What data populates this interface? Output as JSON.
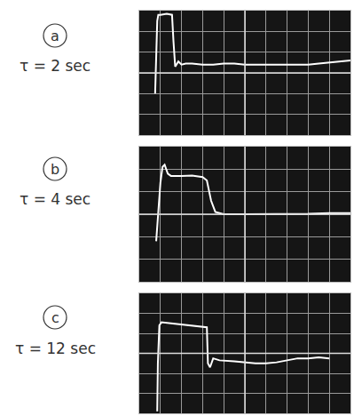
{
  "chart_data": [
    {
      "type": "line",
      "title": "a",
      "subtitle": "τ = 2 sec",
      "xlim": [
        0,
        10
      ],
      "ylim": [
        0,
        6
      ],
      "xticks": [
        0,
        1,
        2,
        3,
        4,
        5,
        6,
        7,
        8,
        9,
        10
      ],
      "yticks": [
        0,
        1,
        2,
        3,
        4,
        5,
        6
      ],
      "grid": true,
      "tick_labels": false,
      "color": "#ffffff",
      "x": [
        0.75,
        0.78,
        0.85,
        0.9,
        1.0,
        1.3,
        1.55,
        1.62,
        1.7,
        1.85,
        2.0,
        2.2,
        2.5,
        3,
        3.5,
        4,
        4.5,
        5,
        5.5,
        6,
        6.5,
        7,
        7.5,
        8,
        8.5,
        9,
        9.5,
        10
      ],
      "values": [
        2.0,
        3.5,
        5.5,
        5.8,
        5.8,
        5.85,
        5.8,
        4.5,
        3.3,
        3.55,
        3.4,
        3.45,
        3.45,
        3.4,
        3.4,
        3.45,
        3.45,
        3.4,
        3.4,
        3.4,
        3.38,
        3.38,
        3.4,
        3.4,
        3.45,
        3.5,
        3.55,
        3.6
      ]
    },
    {
      "type": "line",
      "title": "b",
      "subtitle": "τ = 4 sec",
      "xlim": [
        0,
        10
      ],
      "ylim": [
        0,
        6
      ],
      "xticks": [
        0,
        1,
        2,
        3,
        4,
        5,
        6,
        7,
        8,
        9,
        10
      ],
      "yticks": [
        0,
        1,
        2,
        3,
        4,
        5,
        6
      ],
      "grid": true,
      "tick_labels": false,
      "color": "#ffffff",
      "x": [
        0.8,
        0.9,
        1.0,
        1.1,
        1.2,
        1.35,
        1.5,
        2.0,
        2.5,
        3.0,
        3.2,
        3.4,
        3.6,
        3.8,
        4.0,
        5,
        6,
        7,
        8,
        9,
        10
      ],
      "values": [
        1.8,
        3.0,
        4.4,
        5.1,
        5.2,
        4.8,
        4.7,
        4.7,
        4.72,
        4.65,
        4.5,
        3.6,
        3.1,
        3.05,
        3.0,
        3.0,
        3.0,
        3.02,
        3.02,
        3.05,
        3.05
      ]
    },
    {
      "type": "line",
      "title": "c",
      "subtitle": "τ = 12 sec",
      "xlim": [
        0,
        10
      ],
      "ylim": [
        0,
        6
      ],
      "xticks": [
        0,
        1,
        2,
        3,
        4,
        5,
        6,
        7,
        8,
        9,
        10
      ],
      "yticks": [
        0,
        1,
        2,
        3,
        4,
        5,
        6
      ],
      "grid": true,
      "tick_labels": false,
      "color": "#ffffff",
      "x": [
        0.85,
        0.88,
        0.95,
        1.05,
        1.5,
        2.0,
        2.5,
        3.0,
        3.2,
        3.25,
        3.35,
        3.5,
        3.8,
        4.5,
        5,
        5.5,
        6,
        6.5,
        7,
        7.5,
        8,
        8.5,
        9
      ],
      "values": [
        0.1,
        2.5,
        4.4,
        4.55,
        4.5,
        4.45,
        4.4,
        4.35,
        4.3,
        2.5,
        2.3,
        2.75,
        2.65,
        2.6,
        2.55,
        2.5,
        2.5,
        2.55,
        2.65,
        2.75,
        2.75,
        2.8,
        2.75
      ]
    }
  ]
}
